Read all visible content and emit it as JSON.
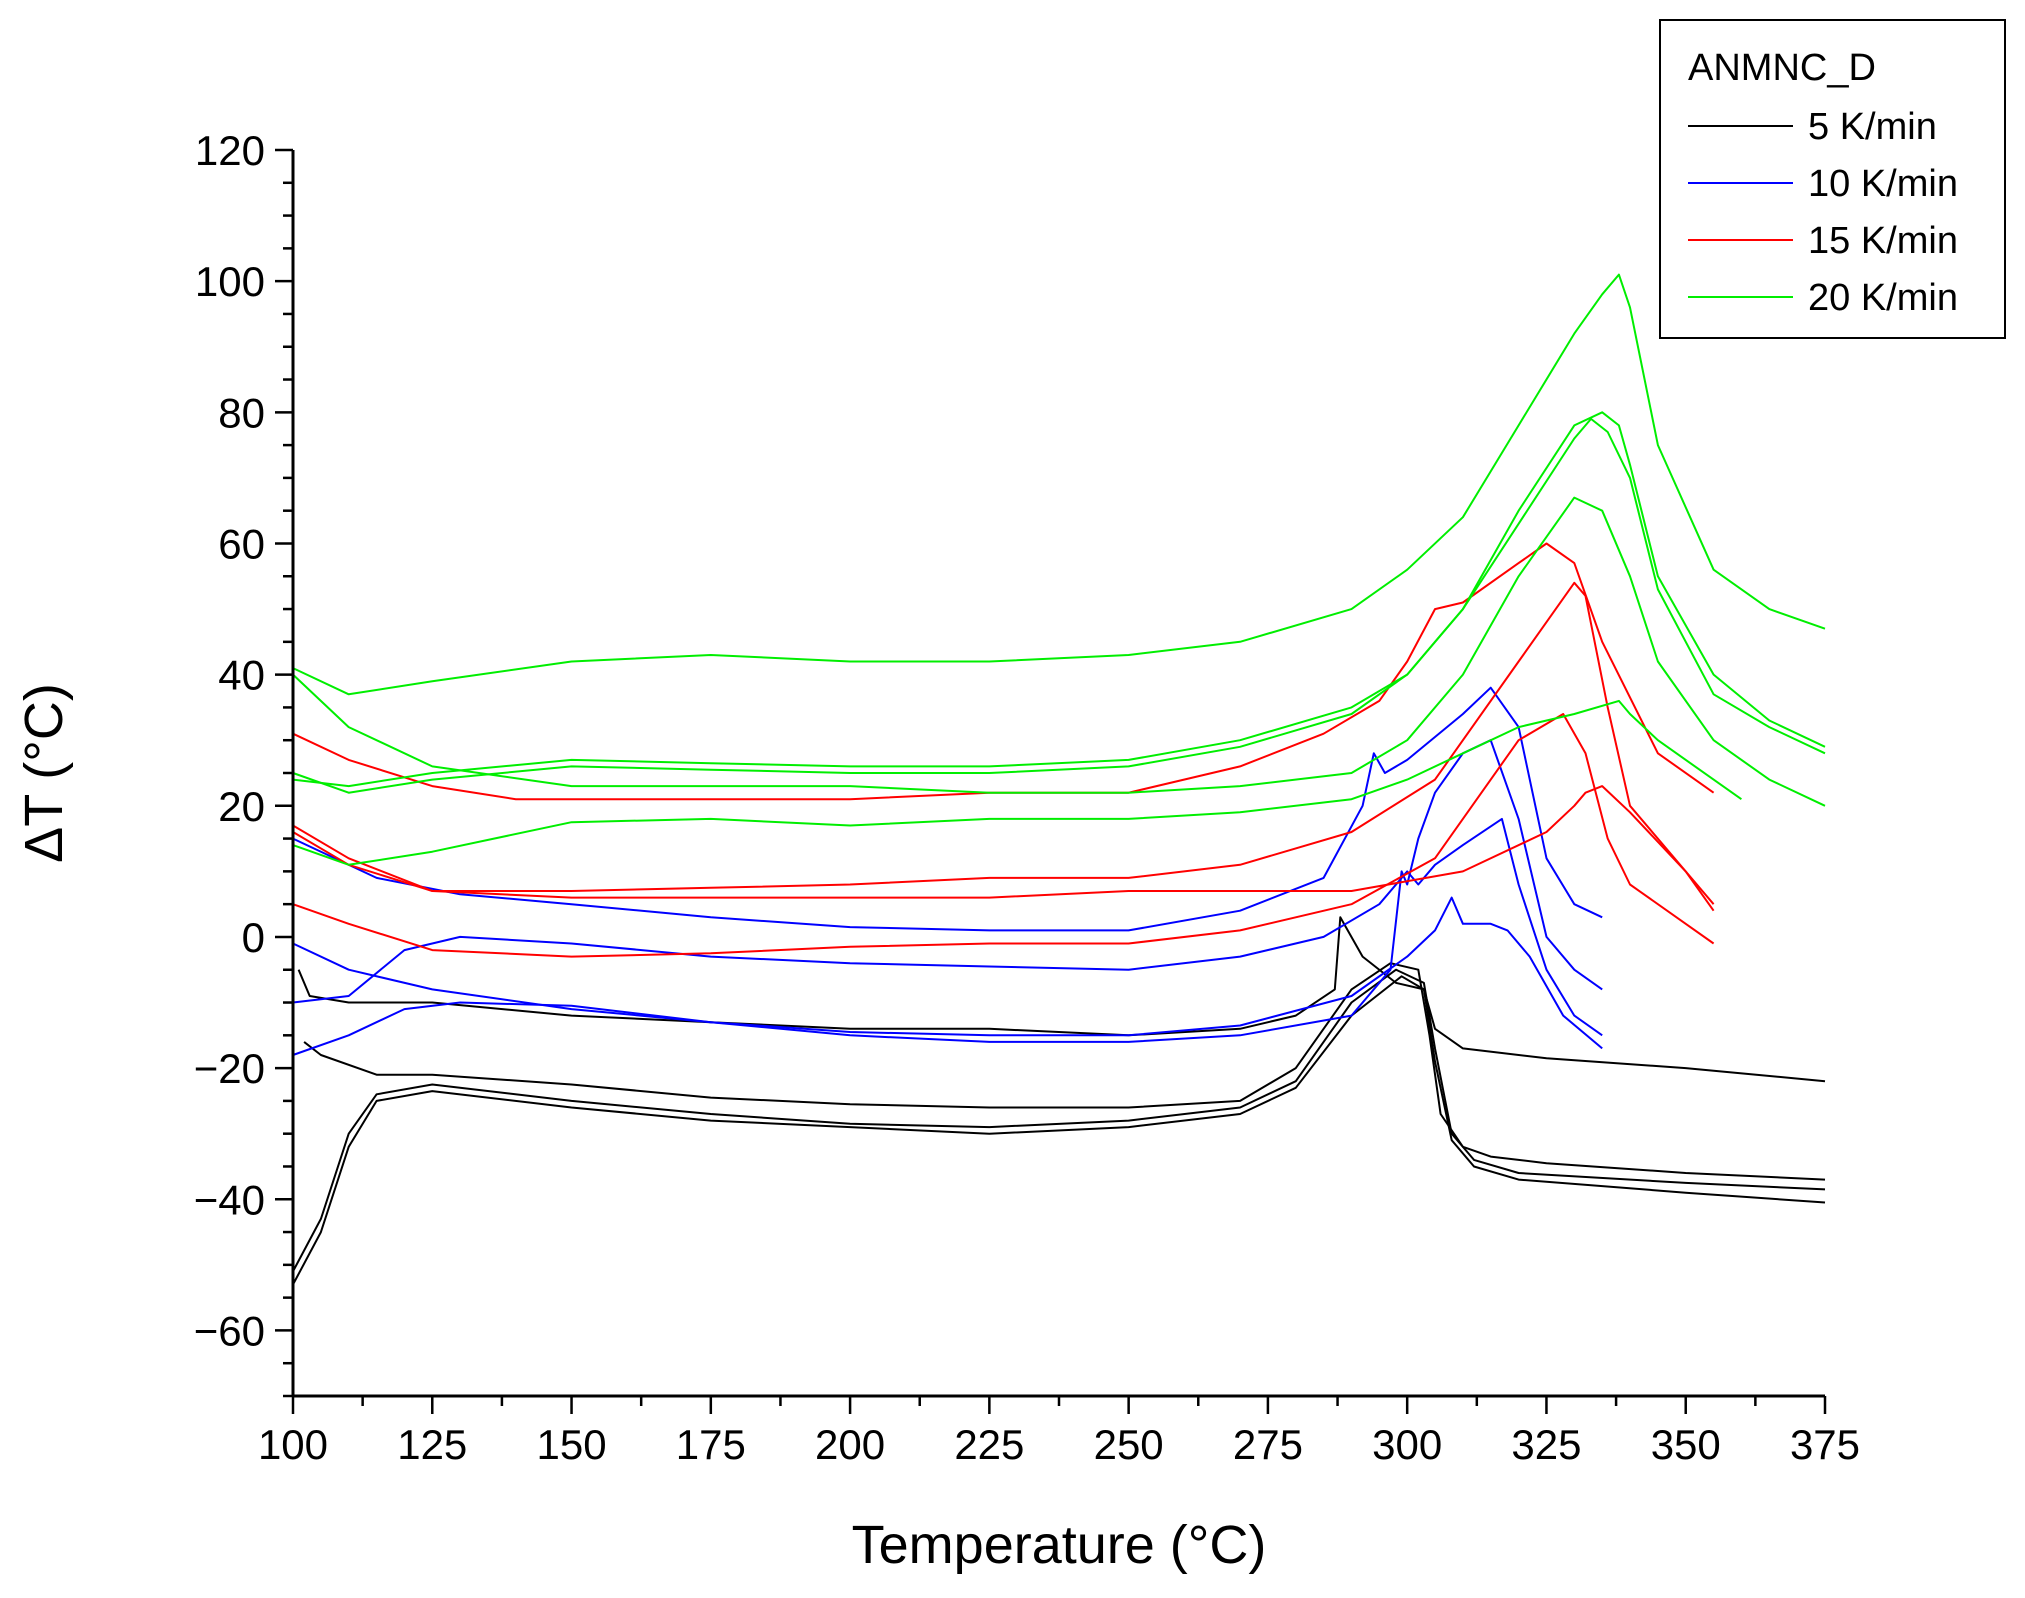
{
  "chart_data": {
    "type": "line",
    "title": "",
    "xlabel": "Temperature (°C)",
    "ylabel": "ΔT (°C)",
    "xlim": [
      100,
      375
    ],
    "ylim": [
      -70,
      120
    ],
    "xticks": [
      100,
      125,
      150,
      175,
      200,
      225,
      250,
      275,
      300,
      325,
      350,
      375
    ],
    "yticks": [
      -60,
      -40,
      -20,
      0,
      20,
      40,
      60,
      80,
      100,
      120
    ],
    "xtick_labels": [
      "100",
      "125",
      "150",
      "175",
      "200",
      "225",
      "250",
      "275",
      "300",
      "325",
      "350",
      "375"
    ],
    "ytick_labels": [
      "−60",
      "−40",
      "−20",
      "0",
      "20",
      "40",
      "60",
      "80",
      "100",
      "120"
    ],
    "grid": false,
    "legend": {
      "title": "ANMNC_D",
      "position": "top-right",
      "entries": [
        {
          "name": "5 K/min",
          "color": "#000000"
        },
        {
          "name": "10 K/min",
          "color": "#0000ff"
        },
        {
          "name": "15 K/min",
          "color": "#ff0000"
        },
        {
          "name": "20 K/min",
          "color": "#00ee00"
        }
      ]
    },
    "series": [
      {
        "name": "5 K/min",
        "color": "#000000",
        "x": [
          101,
          103,
          110,
          125,
          150,
          175,
          200,
          225,
          250,
          270,
          280,
          287,
          288,
          292,
          298,
          303,
          305,
          310,
          325,
          350,
          375
        ],
        "y": [
          -5,
          -9,
          -10,
          -10,
          -12,
          -13,
          -14,
          -14,
          -15,
          -14,
          -12,
          -8,
          3,
          -3,
          -7,
          -8,
          -14,
          -17,
          -18.5,
          -20,
          -22
        ]
      },
      {
        "name": "5 K/min",
        "color": "#000000",
        "x": [
          102,
          105,
          115,
          125,
          150,
          175,
          200,
          225,
          250,
          270,
          280,
          290,
          297,
          302,
          304,
          306,
          310,
          315,
          325,
          350,
          375
        ],
        "y": [
          -16,
          -18,
          -21,
          -21,
          -22.5,
          -24.5,
          -25.5,
          -26,
          -26,
          -25,
          -20,
          -8,
          -4,
          -5,
          -15,
          -27,
          -32,
          -33.5,
          -34.5,
          -36,
          -37
        ]
      },
      {
        "name": "5 K/min",
        "color": "#000000",
        "x": [
          100,
          105,
          110,
          115,
          125,
          150,
          175,
          200,
          225,
          250,
          270,
          280,
          290,
          298,
          303,
          305,
          308,
          312,
          320,
          350,
          375
        ],
        "y": [
          -51,
          -43,
          -30,
          -24,
          -22.5,
          -25,
          -27,
          -28.5,
          -29,
          -28,
          -26,
          -22,
          -10,
          -5,
          -7,
          -17,
          -30,
          -34,
          -36,
          -37.5,
          -38.5
        ]
      },
      {
        "name": "5 K/min",
        "color": "#000000",
        "x": [
          100,
          105,
          110,
          115,
          125,
          150,
          175,
          200,
          225,
          250,
          270,
          280,
          290,
          299,
          303,
          305,
          308,
          312,
          320,
          350,
          375
        ],
        "y": [
          -53,
          -45,
          -32,
          -25,
          -23.5,
          -26,
          -28,
          -29,
          -30,
          -29,
          -27,
          -23,
          -12,
          -6,
          -8,
          -19,
          -31,
          -35,
          -37,
          -39,
          -40.5
        ]
      },
      {
        "name": "10 K/min",
        "color": "#0000ff",
        "x": [
          100,
          115,
          130,
          150,
          175,
          200,
          225,
          250,
          270,
          285,
          292,
          294,
          296,
          300,
          310,
          315,
          320,
          325,
          330,
          335
        ],
        "y": [
          15,
          9,
          6.5,
          5,
          3,
          1.5,
          1,
          1,
          4,
          9,
          20,
          28,
          25,
          27,
          34,
          38,
          32,
          12,
          5,
          3
        ]
      },
      {
        "name": "10 K/min",
        "color": "#0000ff",
        "x": [
          100,
          110,
          125,
          150,
          175,
          200,
          225,
          250,
          270,
          290,
          297,
          299,
          300,
          302,
          305,
          310,
          315,
          320,
          325,
          330,
          335
        ],
        "y": [
          -1,
          -5,
          -8,
          -11,
          -13,
          -15,
          -16,
          -16,
          -15,
          -12,
          -5,
          10,
          8,
          15,
          22,
          28,
          30,
          18,
          0,
          -5,
          -8
        ]
      },
      {
        "name": "10 K/min",
        "color": "#0000ff",
        "x": [
          100,
          110,
          120,
          130,
          150,
          175,
          200,
          225,
          250,
          270,
          285,
          295,
          300,
          302,
          305,
          310,
          317,
          320,
          325,
          330,
          335
        ],
        "y": [
          -10,
          -9,
          -2,
          0,
          -1,
          -3,
          -4,
          -4.5,
          -5,
          -3,
          0,
          5,
          10,
          8,
          11,
          14,
          18,
          8,
          -5,
          -12,
          -15
        ]
      },
      {
        "name": "10 K/min",
        "color": "#0000ff",
        "x": [
          100,
          110,
          120,
          130,
          150,
          175,
          200,
          225,
          250,
          270,
          290,
          300,
          305,
          308,
          310,
          315,
          318,
          322,
          328,
          335
        ],
        "y": [
          -18,
          -15,
          -11,
          -10,
          -10.5,
          -13,
          -14.5,
          -15,
          -15,
          -13.5,
          -9,
          -3,
          1,
          6,
          2,
          2,
          1,
          -3,
          -12,
          -17
        ]
      },
      {
        "name": "15 K/min",
        "color": "#ff0000",
        "x": [
          100,
          110,
          125,
          140,
          150,
          175,
          200,
          225,
          250,
          270,
          285,
          295,
          300,
          305,
          310,
          320,
          325,
          330,
          335,
          345,
          355
        ],
        "y": [
          31,
          27,
          23,
          21,
          21,
          21,
          21,
          22,
          22,
          26,
          31,
          36,
          42,
          50,
          51,
          57,
          60,
          57,
          45,
          28,
          22
        ]
      },
      {
        "name": "15 K/min",
        "color": "#ff0000",
        "x": [
          100,
          110,
          125,
          150,
          175,
          200,
          225,
          250,
          270,
          290,
          310,
          325,
          330,
          332,
          335,
          340,
          350,
          355
        ],
        "y": [
          17,
          12,
          7,
          6,
          6,
          6,
          6,
          7,
          7,
          7,
          10,
          16,
          20,
          22,
          23,
          19,
          10,
          5
        ]
      },
      {
        "name": "15 K/min",
        "color": "#ff0000",
        "x": [
          100,
          110,
          125,
          150,
          175,
          200,
          225,
          250,
          270,
          290,
          305,
          320,
          330,
          332,
          336,
          340,
          350,
          355
        ],
        "y": [
          16,
          11,
          7,
          7,
          7.5,
          8,
          9,
          9,
          11,
          16,
          24,
          42,
          54,
          52,
          35,
          20,
          10,
          4
        ]
      },
      {
        "name": "15 K/min",
        "color": "#ff0000",
        "x": [
          100,
          110,
          125,
          150,
          175,
          200,
          225,
          250,
          270,
          290,
          305,
          320,
          328,
          332,
          336,
          340,
          350,
          355
        ],
        "y": [
          5,
          2,
          -2,
          -3,
          -2.5,
          -1.5,
          -1,
          -1,
          1,
          5,
          12,
          30,
          34,
          28,
          15,
          8,
          2,
          -1
        ]
      },
      {
        "name": "20 K/min",
        "color": "#00ee00",
        "x": [
          100,
          110,
          125,
          150,
          175,
          200,
          225,
          250,
          270,
          290,
          300,
          310,
          320,
          330,
          335,
          338,
          340,
          345,
          355,
          365,
          375
        ],
        "y": [
          41,
          37,
          39,
          42,
          43,
          42,
          42,
          43,
          45,
          50,
          56,
          64,
          78,
          92,
          98,
          101,
          96,
          75,
          56,
          50,
          47
        ]
      },
      {
        "name": "20 K/min",
        "color": "#00ee00",
        "x": [
          100,
          110,
          125,
          150,
          175,
          200,
          225,
          250,
          270,
          290,
          300,
          310,
          320,
          330,
          335,
          338,
          340,
          345,
          355,
          365,
          375
        ],
        "y": [
          24,
          23,
          25,
          27,
          26.5,
          26,
          26,
          27,
          30,
          35,
          40,
          50,
          65,
          78,
          80,
          78,
          72,
          55,
          40,
          33,
          29
        ]
      },
      {
        "name": "20 K/min",
        "color": "#00ee00",
        "x": [
          100,
          110,
          125,
          150,
          175,
          200,
          225,
          250,
          270,
          290,
          300,
          310,
          320,
          330,
          333,
          336,
          340,
          345,
          355,
          365,
          375
        ],
        "y": [
          25,
          22,
          24,
          26,
          25.5,
          25,
          25,
          26,
          29,
          34,
          40,
          50,
          63,
          76,
          79,
          77,
          70,
          53,
          37,
          32,
          28
        ]
      },
      {
        "name": "20 K/min",
        "color": "#00ee00",
        "x": [
          100,
          110,
          125,
          150,
          175,
          200,
          225,
          250,
          270,
          290,
          300,
          310,
          320,
          330,
          335,
          340,
          345,
          355,
          365,
          375
        ],
        "y": [
          40,
          32,
          26,
          23,
          23,
          23,
          22,
          22,
          23,
          25,
          30,
          40,
          55,
          67,
          65,
          55,
          42,
          30,
          24,
          20
        ]
      },
      {
        "name": "20 K/min",
        "color": "#00ee00",
        "x": [
          100,
          110,
          125,
          150,
          175,
          200,
          225,
          250,
          270,
          290,
          300,
          310,
          320,
          330,
          338,
          340,
          345,
          355,
          360
        ],
        "y": [
          14,
          11,
          13,
          17.5,
          18,
          17,
          18,
          18,
          19,
          21,
          24,
          28,
          32,
          34,
          36,
          34,
          30,
          24,
          21
        ]
      }
    ]
  }
}
